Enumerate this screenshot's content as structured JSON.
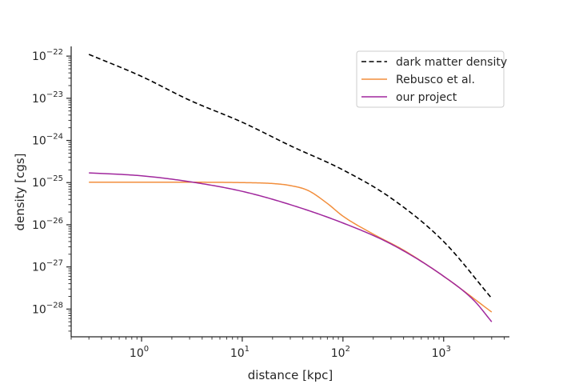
{
  "chart_data": {
    "type": "line",
    "title": "",
    "xlabel": "distance [kpc]",
    "ylabel": "density [cgs]",
    "xscale": "log",
    "yscale": "log",
    "xlim": [
      0.2,
      4500
    ],
    "ylim": [
      2.2e-29,
      1.7e-22
    ],
    "grid": false,
    "legend_position": "top-right",
    "x_ticks": [
      {
        "value": 1,
        "base": "10",
        "exp": "0"
      },
      {
        "value": 10,
        "base": "10",
        "exp": "1"
      },
      {
        "value": 100,
        "base": "10",
        "exp": "2"
      },
      {
        "value": 1000,
        "base": "10",
        "exp": "3"
      }
    ],
    "y_ticks": [
      {
        "value": 1e-22,
        "base": "10",
        "exp": "−22"
      },
      {
        "value": 1e-23,
        "base": "10",
        "exp": "−23"
      },
      {
        "value": 1e-24,
        "base": "10",
        "exp": "−24"
      },
      {
        "value": 1e-25,
        "base": "10",
        "exp": "−25"
      },
      {
        "value": 1e-26,
        "base": "10",
        "exp": "−26"
      },
      {
        "value": 1e-27,
        "base": "10",
        "exp": "−27"
      },
      {
        "value": 1e-28,
        "base": "10",
        "exp": "−28"
      }
    ],
    "series": [
      {
        "name": "dark matter density",
        "color": "#000000",
        "style": "dashed",
        "x": [
          0.3,
          1,
          3,
          10,
          30,
          100,
          300,
          1000,
          3000
        ],
        "y": [
          1.1e-22,
          3.3e-23,
          9e-24,
          2.7e-24,
          7.5e-25,
          2e-25,
          4.3e-26,
          4e-27,
          1.8e-28
        ]
      },
      {
        "name": "Rebusco et al.",
        "color": "#f28e3c",
        "style": "solid",
        "x": [
          0.3,
          1,
          3,
          10,
          20,
          30,
          45,
          70,
          100,
          200,
          400,
          1000,
          3000
        ],
        "y": [
          1.02e-25,
          1.02e-25,
          1.02e-25,
          1e-25,
          9.5e-26,
          8.5e-26,
          6.5e-26,
          3.2e-26,
          1.6e-26,
          6e-27,
          2.5e-27,
          6e-28,
          8.5e-29
        ]
      },
      {
        "name": "our project",
        "color": "#a0279d",
        "style": "solid",
        "x": [
          0.3,
          1,
          3,
          10,
          30,
          100,
          300,
          1000,
          2000,
          3000
        ],
        "y": [
          1.7e-25,
          1.45e-25,
          1.05e-25,
          6.2e-26,
          3e-26,
          1.1e-26,
          3.5e-27,
          6e-28,
          1.6e-28,
          5e-29
        ]
      }
    ]
  }
}
